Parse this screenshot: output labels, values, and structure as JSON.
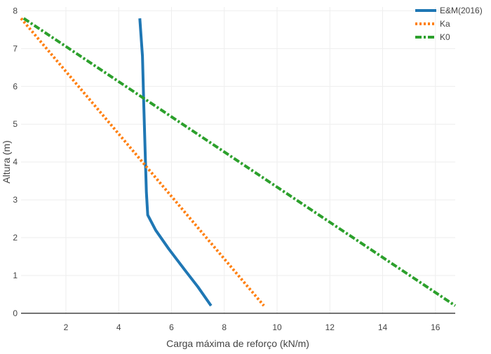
{
  "chart_data": {
    "type": "line",
    "title": "",
    "xlabel": "Carga máxima de reforço (kN/m)",
    "ylabel": "Altura (m)",
    "xlim": [
      0.3,
      16.75
    ],
    "ylim": [
      -0.02,
      8.1
    ],
    "x_ticks": [
      "2",
      "4",
      "6",
      "8",
      "10",
      "12",
      "14",
      "16"
    ],
    "y_ticks": [
      "0",
      "1",
      "2",
      "3",
      "4",
      "5",
      "6",
      "7",
      "8"
    ],
    "grid": true,
    "legend_position": "top-right",
    "series": [
      {
        "name": "E&M(2016)",
        "color": "#1f77b4",
        "dash": "solid",
        "x": [
          4.8,
          4.9,
          4.95,
          5.0,
          5.05,
          5.1,
          5.4,
          5.9,
          6.5,
          7.0,
          7.5
        ],
        "y": [
          7.8,
          6.8,
          5.5,
          4.3,
          3.2,
          2.6,
          2.2,
          1.7,
          1.15,
          0.7,
          0.2
        ]
      },
      {
        "name": "Ka",
        "color": "#ff7f0e",
        "dash": "dot",
        "x": [
          0.3,
          9.5
        ],
        "y": [
          7.8,
          0.2
        ]
      },
      {
        "name": "K0",
        "color": "#2ca02c",
        "dash": "dashdot",
        "x": [
          0.4,
          16.75
        ],
        "y": [
          7.8,
          0.2
        ]
      }
    ]
  }
}
